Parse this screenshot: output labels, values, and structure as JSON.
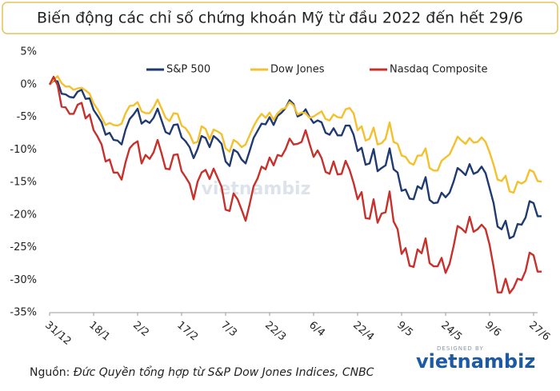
{
  "chart_data": {
    "type": "line",
    "title": "Biến động các chỉ số chứng khoán Mỹ từ đầu 2022 đến hết 29/6",
    "categories": [
      "31/12",
      null,
      null,
      null,
      null,
      null,
      null,
      null,
      null,
      null,
      null,
      "18/1",
      null,
      null,
      null,
      null,
      null,
      null,
      null,
      null,
      null,
      null,
      "2/2",
      null,
      null,
      null,
      null,
      null,
      null,
      null,
      null,
      null,
      null,
      "17/2",
      null,
      null,
      null,
      null,
      null,
      null,
      null,
      null,
      null,
      null,
      "7/3",
      null,
      null,
      null,
      null,
      null,
      null,
      null,
      null,
      null,
      null,
      "22/3",
      null,
      null,
      null,
      null,
      null,
      null,
      null,
      null,
      null,
      null,
      "6/4",
      null,
      null,
      null,
      null,
      null,
      null,
      null,
      null,
      null,
      null,
      "22/4",
      null,
      null,
      null,
      null,
      null,
      null,
      null,
      null,
      null,
      null,
      "9/5",
      null,
      null,
      null,
      null,
      null,
      null,
      null,
      null,
      null,
      null,
      "24/5",
      null,
      null,
      null,
      null,
      null,
      null,
      null,
      null,
      null,
      null,
      "9/6",
      null,
      null,
      null,
      null,
      null,
      null,
      null,
      null,
      null,
      null,
      "27/6",
      null,
      null
    ],
    "series": [
      {
        "name": "S&P 500",
        "color": "#1f3a70",
        "values": [
          0,
          0.6,
          0.5,
          -1.4,
          -1.5,
          -1.9,
          -2.0,
          -1.1,
          -0.8,
          -2.2,
          -2.1,
          -3.9,
          -4.8,
          -5.8,
          -7.7,
          -7.4,
          -8.5,
          -8.6,
          -9.2,
          -6.9,
          -5.3,
          -4.6,
          -3.7,
          -6.0,
          -5.5,
          -5.9,
          -5.1,
          -3.7,
          -5.5,
          -7.3,
          -7.6,
          -6.2,
          -6.1,
          -8.1,
          -8.7,
          -9.6,
          -11.3,
          -9.9,
          -7.9,
          -8.2,
          -9.6,
          -7.9,
          -8.4,
          -9.1,
          -11.8,
          -12.5,
          -10.0,
          -10.4,
          -11.5,
          -12.1,
          -10.2,
          -8.2,
          -7.1,
          -6.0,
          -6.1,
          -5.0,
          -6.2,
          -4.8,
          -4.3,
          -3.6,
          -2.4,
          -3.0,
          -4.9,
          -4.6,
          -3.8,
          -5.0,
          -5.9,
          -5.5,
          -5.8,
          -7.4,
          -7.7,
          -6.7,
          -7.8,
          -7.8,
          -6.3,
          -6.3,
          -7.7,
          -10.2,
          -9.7,
          -12.3,
          -12.1,
          -9.9,
          -13.3,
          -12.8,
          -12.4,
          -9.8,
          -13.0,
          -13.5,
          -16.3,
          -16.1,
          -17.5,
          -17.6,
          -15.6,
          -16.0,
          -14.2,
          -17.7,
          -18.2,
          -18.1,
          -16.6,
          -17.3,
          -16.6,
          -14.9,
          -12.8,
          -13.3,
          -13.9,
          -12.2,
          -13.7,
          -13.4,
          -12.6,
          -13.6,
          -15.9,
          -18.2,
          -21.8,
          -22.2,
          -20.9,
          -23.6,
          -23.3,
          -21.4,
          -21.5,
          -20.4,
          -17.9,
          -18.2,
          -20.2,
          -20.2
        ]
      },
      {
        "name": "Dow Jones",
        "color": "#f4c02c",
        "values": [
          0,
          0.7,
          1.3,
          0.2,
          -0.3,
          -0.3,
          -0.8,
          -0.6,
          -0.5,
          -0.9,
          -1.4,
          -2.9,
          -3.8,
          -5.0,
          -6.2,
          -5.9,
          -6.2,
          -6.3,
          -6.0,
          -4.4,
          -3.3,
          -3.2,
          -2.7,
          -4.1,
          -4.4,
          -4.4,
          -3.5,
          -2.3,
          -3.7,
          -5.1,
          -5.6,
          -4.4,
          -4.5,
          -6.3,
          -6.7,
          -7.6,
          -9.0,
          -8.8,
          -6.4,
          -6.8,
          -8.4,
          -6.9,
          -7.2,
          -7.6,
          -9.8,
          -10.3,
          -8.5,
          -8.9,
          -9.6,
          -9.2,
          -7.8,
          -6.4,
          -5.3,
          -4.5,
          -5.1,
          -4.3,
          -5.4,
          -4.4,
          -3.8,
          -3.6,
          -2.7,
          -3.2,
          -4.6,
          -4.3,
          -4.4,
          -5.1,
          -4.9,
          -4.5,
          -4.1,
          -5.3,
          -5.5,
          -4.6,
          -5.0,
          -5.1,
          -3.8,
          -3.6,
          -4.4,
          -7.0,
          -6.4,
          -8.6,
          -8.3,
          -6.6,
          -9.2,
          -9.0,
          -8.3,
          -5.8,
          -8.8,
          -9.1,
          -10.9,
          -11.1,
          -12.0,
          -12.3,
          -10.9,
          -10.9,
          -9.8,
          -12.8,
          -13.2,
          -13.2,
          -11.7,
          -11.2,
          -10.7,
          -9.4,
          -8.0,
          -8.6,
          -9.1,
          -8.2,
          -8.9,
          -8.8,
          -8.1,
          -8.8,
          -10.4,
          -12.3,
          -14.6,
          -14.8,
          -14.0,
          -16.4,
          -16.6,
          -14.9,
          -15.2,
          -14.8,
          -13.1,
          -13.4,
          -14.8,
          -14.9
        ]
      },
      {
        "name": "Nasdaq Composite",
        "color": "#c8302c",
        "values": [
          0,
          1.2,
          -0.1,
          -3.4,
          -3.5,
          -4.5,
          -4.5,
          -3.1,
          -2.8,
          -5.2,
          -4.6,
          -7.0,
          -8.0,
          -9.2,
          -11.8,
          -11.5,
          -13.5,
          -13.5,
          -14.6,
          -11.9,
          -9.8,
          -9.1,
          -8.7,
          -12.1,
          -10.8,
          -11.4,
          -10.4,
          -8.5,
          -10.6,
          -12.9,
          -13.0,
          -10.8,
          -10.7,
          -13.3,
          -14.2,
          -15.2,
          -17.6,
          -14.9,
          -13.5,
          -13.1,
          -14.5,
          -12.9,
          -14.3,
          -15.7,
          -19.2,
          -19.4,
          -16.7,
          -17.6,
          -19.2,
          -20.9,
          -18.4,
          -15.6,
          -14.4,
          -12.6,
          -13.0,
          -11.2,
          -12.4,
          -10.8,
          -11.0,
          -9.9,
          -8.3,
          -9.2,
          -9.1,
          -8.8,
          -7.0,
          -9.1,
          -11.1,
          -10.1,
          -11.3,
          -13.4,
          -13.7,
          -11.8,
          -13.8,
          -13.7,
          -11.7,
          -13.1,
          -15.1,
          -17.6,
          -16.5,
          -20.5,
          -20.6,
          -17.6,
          -21.2,
          -19.8,
          -19.6,
          -16.4,
          -21.0,
          -22.2,
          -26.0,
          -25.1,
          -27.8,
          -28.0,
          -25.3,
          -25.9,
          -23.6,
          -27.4,
          -27.9,
          -27.9,
          -26.6,
          -28.9,
          -27.5,
          -24.8,
          -21.7,
          -22.1,
          -22.7,
          -20.3,
          -22.6,
          -22.2,
          -21.5,
          -22.2,
          -24.6,
          -28.0,
          -31.9,
          -31.9,
          -29.8,
          -32.0,
          -31.2,
          -29.8,
          -30.0,
          -28.6,
          -25.8,
          -26.2,
          -28.7,
          -28.7
        ]
      }
    ],
    "ylim": [
      -35,
      5
    ],
    "yticks": [
      {
        "value": -35,
        "label": "-35%"
      },
      {
        "value": -30,
        "label": "-30%"
      },
      {
        "value": -25,
        "label": "-25%"
      },
      {
        "value": -20,
        "label": "-20%"
      },
      {
        "value": -15,
        "label": "-15%"
      },
      {
        "value": -10,
        "label": "-10%"
      },
      {
        "value": -5,
        "label": "-5%"
      },
      {
        "value": 0,
        "label": "0%"
      },
      {
        "value": 5,
        "label": "5%"
      }
    ],
    "grid": false,
    "legend": "top",
    "source_label": "Nguồn:",
    "source": "Đức Quyền tổng hợp từ S&P Dow Jones Indices, CNBC",
    "logo_caption": "DESIGNED BY",
    "logo_name": "vietnambiz"
  }
}
